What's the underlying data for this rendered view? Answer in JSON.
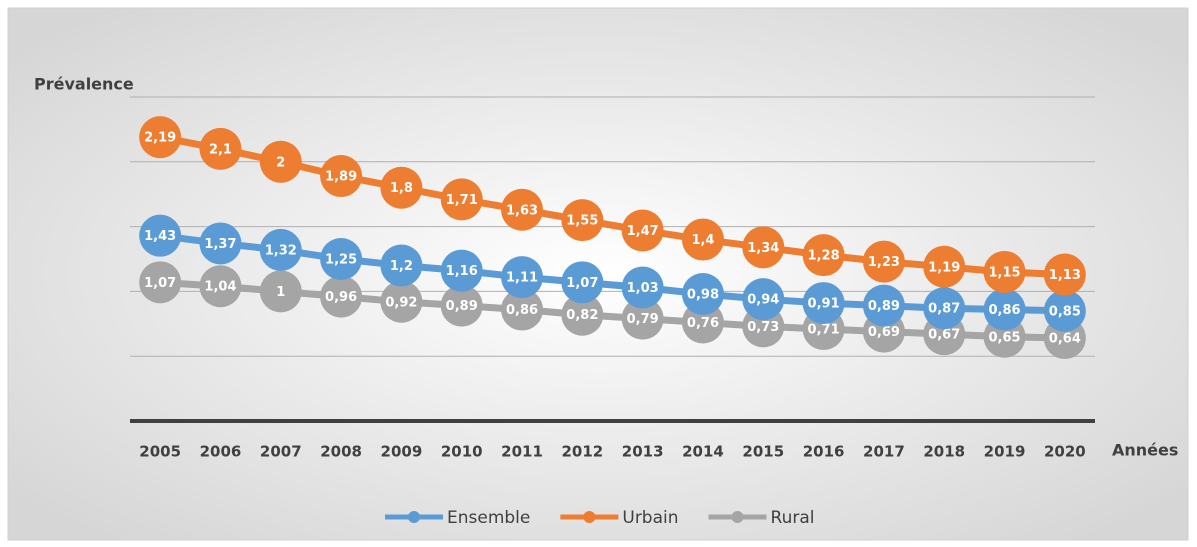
{
  "chart_data": {
    "type": "line",
    "y_label": "Prévalence",
    "x_label": "Années",
    "categories": [
      "2005",
      "2006",
      "2007",
      "2008",
      "2009",
      "2010",
      "2011",
      "2012",
      "2013",
      "2014",
      "2015",
      "2016",
      "2017",
      "2018",
      "2019",
      "2020"
    ],
    "series": [
      {
        "name": "Ensemble",
        "color": "#5b9bd5",
        "values": [
          1.43,
          1.37,
          1.32,
          1.25,
          1.2,
          1.16,
          1.11,
          1.07,
          1.03,
          0.98,
          0.94,
          0.91,
          0.89,
          0.87,
          0.86,
          0.85
        ],
        "value_labels": [
          "1,43",
          "1,37",
          "1,32",
          "1,25",
          "1,2",
          "1,16",
          "1,11",
          "1,07",
          "1,03",
          "0,98",
          "0,94",
          "0,91",
          "0,89",
          "0,87",
          "0,86",
          "0,85"
        ]
      },
      {
        "name": "Urbain",
        "color": "#ed7d31",
        "values": [
          2.19,
          2.1,
          2,
          1.89,
          1.8,
          1.71,
          1.63,
          1.55,
          1.47,
          1.4,
          1.34,
          1.28,
          1.23,
          1.19,
          1.15,
          1.13
        ],
        "value_labels": [
          "2,19",
          "2,1",
          "2",
          "1,89",
          "1,8",
          "1,71",
          "1,63",
          "1,55",
          "1,47",
          "1,4",
          "1,34",
          "1,28",
          "1,23",
          "1,19",
          "1,15",
          "1,13"
        ]
      },
      {
        "name": "Rural",
        "color": "#a5a5a5",
        "values": [
          1.07,
          1.04,
          1,
          0.96,
          0.92,
          0.89,
          0.86,
          0.82,
          0.79,
          0.76,
          0.73,
          0.71,
          0.69,
          0.67,
          0.65,
          0.64
        ],
        "value_labels": [
          "1,07",
          "1,04",
          "1",
          "0,96",
          "0,92",
          "0,89",
          "0,86",
          "0,82",
          "0,79",
          "0,76",
          "0,73",
          "0,71",
          "0,69",
          "0,67",
          "0,65",
          "0,64"
        ]
      }
    ],
    "ylim": [
      0,
      2.5
    ],
    "yticks": [
      0.5,
      1,
      1.5,
      2,
      2.5
    ],
    "grid": true,
    "legend": "bottom"
  }
}
